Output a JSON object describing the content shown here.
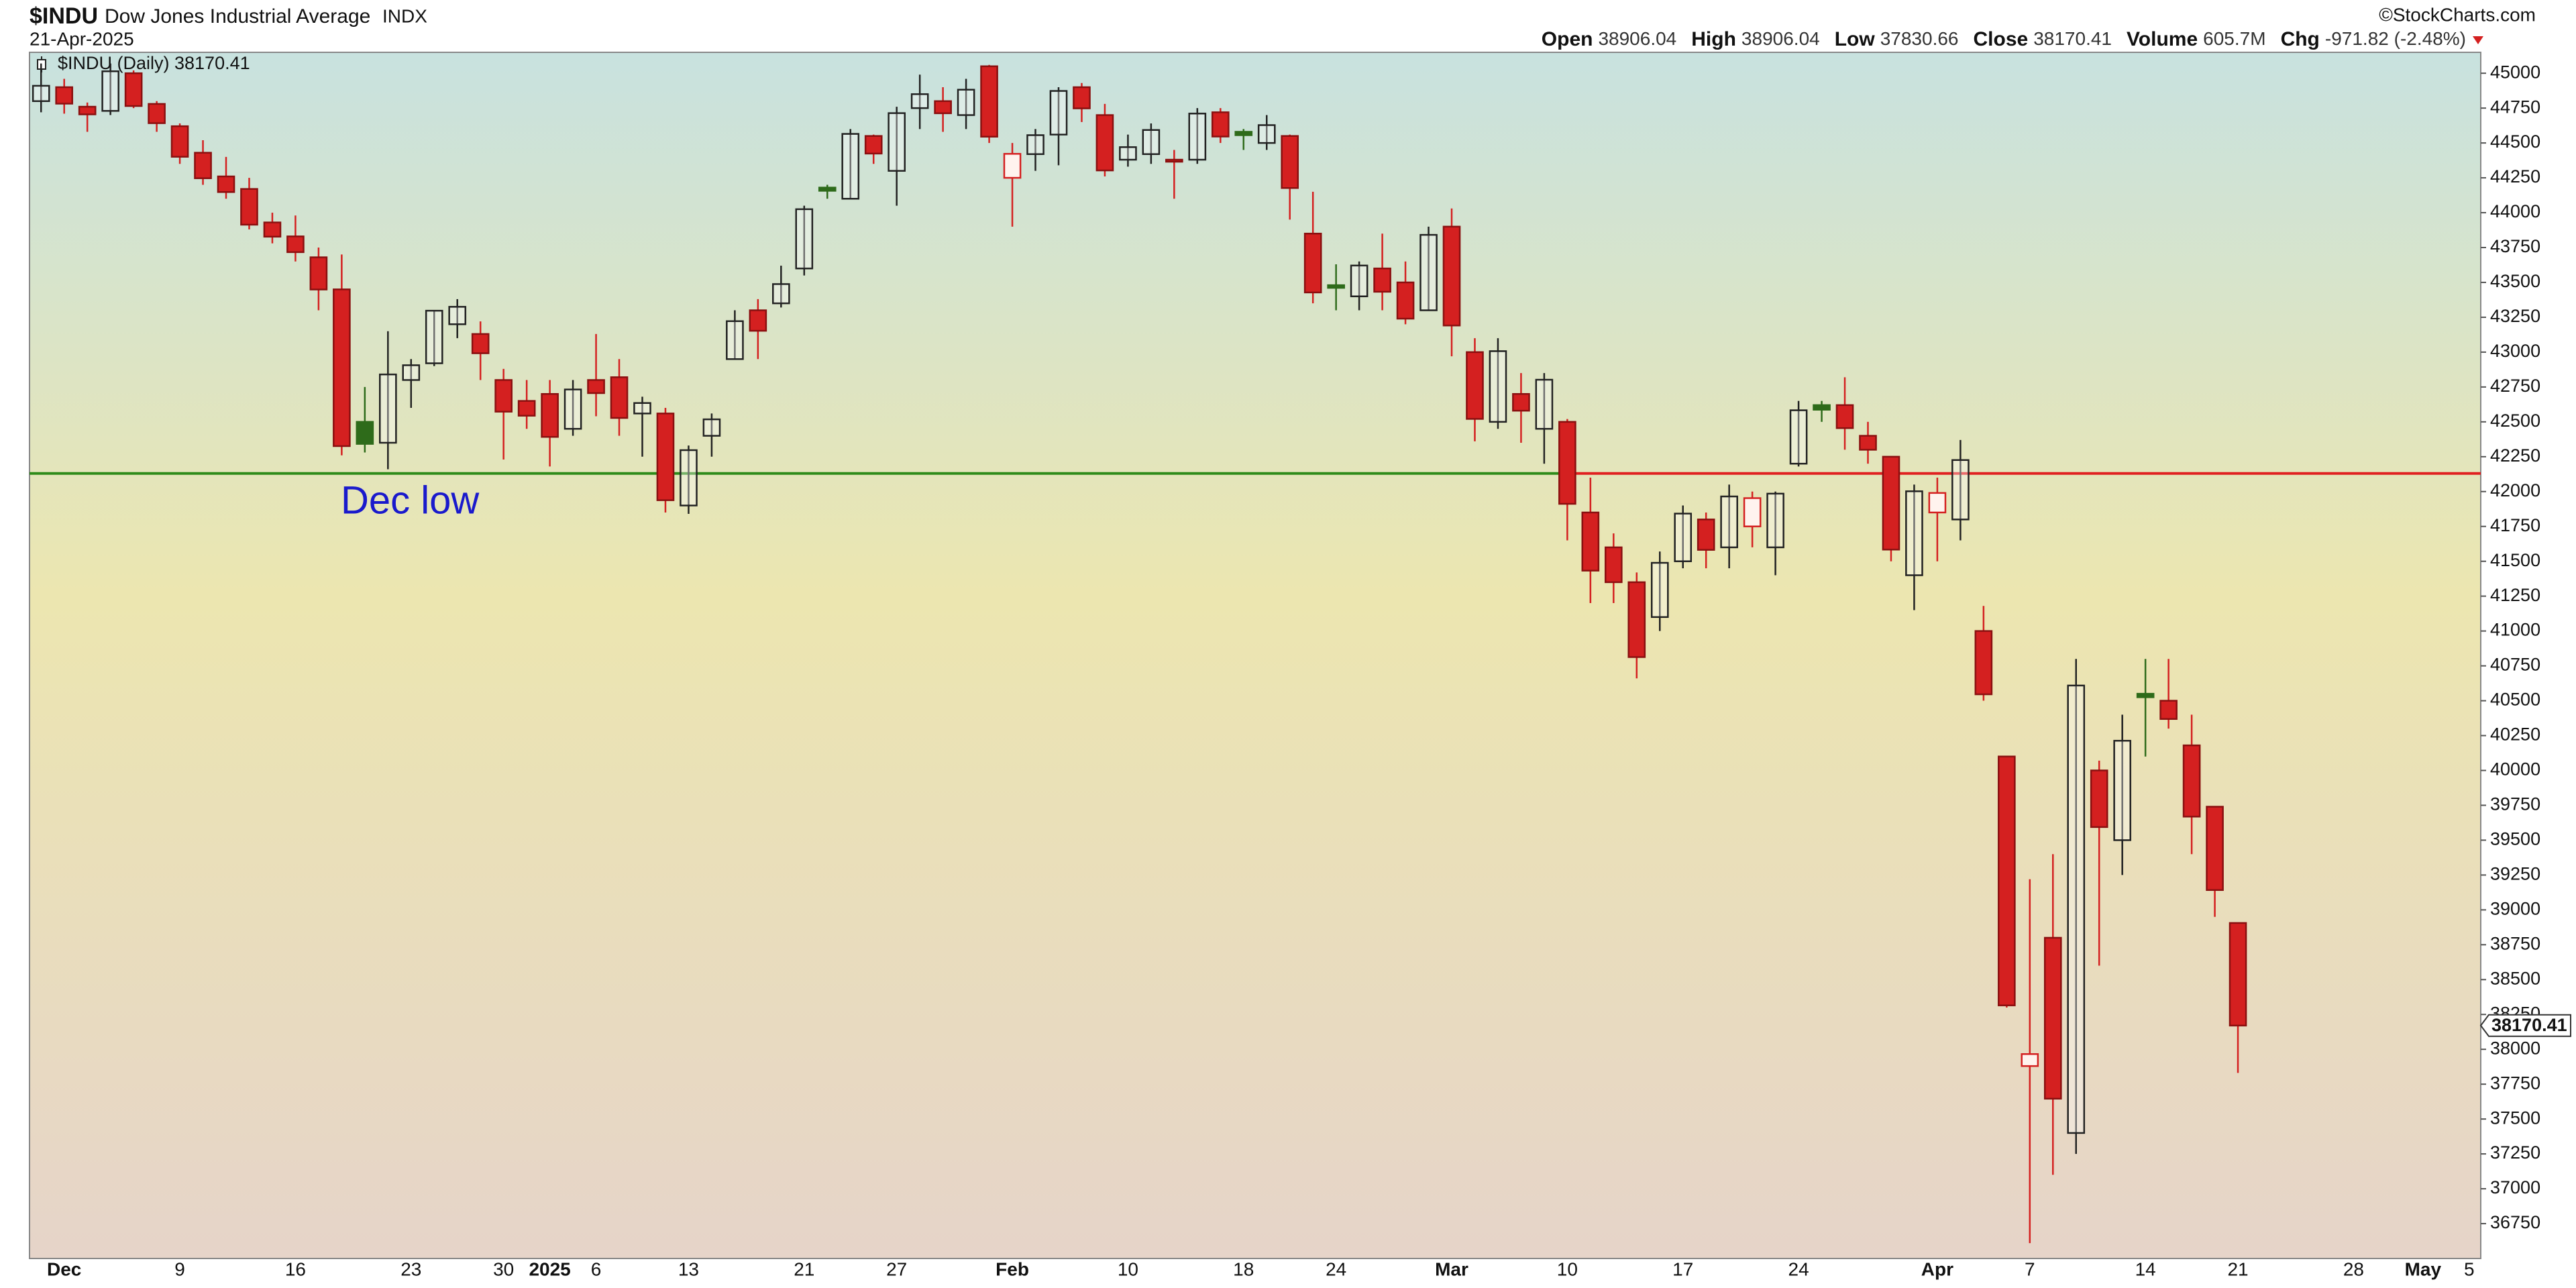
{
  "chart_data": {
    "type": "candlestick",
    "title": "$INDU",
    "subtitle": "Dow Jones Industrial Average",
    "exchange": "INDX",
    "date": "21-Apr-2025",
    "source": "©StockCharts.com",
    "legend": "$INDU (Daily) 38170.41",
    "quote": [
      {
        "label": "Open",
        "value": 38906.04
      },
      {
        "label": "High",
        "value": 38906.04
      },
      {
        "label": "Low",
        "value": 37830.66
      },
      {
        "label": "Close",
        "value": 38170.41
      },
      {
        "label": "Volume",
        "value": "605.7M"
      },
      {
        "label": "Chg",
        "value": "-971.82 (-2.48%)"
      }
    ],
    "annotation": "Dec low",
    "reference_line": {
      "value": 42130,
      "color": "#2e8b1a",
      "broken_color": "#e02020"
    },
    "up_color": "#222222",
    "down_color": "#d42020",
    "up_filled_color": "#2e6b1a",
    "categories": [
      null,
      "Dec",
      null,
      null,
      null,
      null,
      "9",
      null,
      null,
      null,
      null,
      "16",
      null,
      null,
      null,
      null,
      "23",
      null,
      null,
      null,
      "30",
      null,
      "2025",
      null,
      "6",
      null,
      null,
      null,
      "13",
      null,
      null,
      null,
      null,
      "21",
      null,
      null,
      null,
      "27",
      null,
      null,
      null,
      null,
      "Feb",
      null,
      null,
      null,
      null,
      "10",
      null,
      null,
      null,
      null,
      "18",
      null,
      null,
      null,
      "24",
      null,
      null,
      null,
      null,
      "Mar",
      null,
      null,
      null,
      null,
      "10",
      null,
      null,
      null,
      null,
      "17",
      null,
      null,
      null,
      null,
      "24",
      null,
      null,
      null,
      null,
      null,
      "Apr",
      null,
      null,
      null,
      "7",
      null,
      null,
      null,
      null,
      "14",
      null,
      null,
      null,
      "21",
      null,
      null,
      null,
      null,
      "28",
      null,
      null,
      "May",
      null,
      "5"
    ],
    "open": [
      44800,
      44900,
      44760,
      44730,
      45000,
      44780,
      44620,
      44430,
      44260,
      44170,
      43930,
      43830,
      43680,
      43450,
      42500,
      42350,
      42800,
      42920,
      43200,
      43130,
      42800,
      42650,
      42700,
      42450,
      42800,
      42820,
      42560,
      42560,
      41900,
      42400,
      42950,
      43300,
      43350,
      43600,
      44180,
      44100,
      44550,
      44300,
      44750,
      44800,
      44700,
      45050,
      44250,
      44420,
      44560,
      44900,
      44700,
      44380,
      44420,
      44380,
      44380,
      44720,
      44580,
      44500,
      44550,
      43850,
      43480,
      43400,
      43600,
      43500,
      43300,
      43900,
      43000,
      42500,
      42700,
      42450,
      42500,
      41850,
      41600,
      41350,
      41100,
      41500,
      41800,
      41600,
      41750,
      41600,
      42200,
      42620,
      42620,
      42400,
      42250,
      41400,
      41850,
      41800,
      41000,
      40100,
      37880,
      38800,
      37400,
      40000,
      39500,
      40550,
      40500,
      40180,
      39740,
      38906.04,
      null,
      null,
      null,
      null,
      null,
      null,
      null,
      null,
      null,
      null
    ],
    "high": [
      45070,
      44960,
      44790,
      45070,
      45020,
      44800,
      44640,
      44520,
      44400,
      44250,
      44000,
      43980,
      43750,
      43700,
      42750,
      43150,
      42950,
      43300,
      43380,
      43220,
      42880,
      42800,
      42800,
      42800,
      43130,
      42950,
      42680,
      42600,
      42330,
      42560,
      43300,
      43380,
      43620,
      44050,
      44200,
      44600,
      44560,
      44760,
      44990,
      44900,
      44960,
      45060,
      44500,
      44600,
      44900,
      44930,
      44780,
      44560,
      44640,
      44450,
      44750,
      44750,
      44600,
      44700,
      44560,
      44150,
      43630,
      43650,
      43850,
      43650,
      43900,
      44030,
      43100,
      43100,
      42850,
      42850,
      42520,
      42100,
      41700,
      41420,
      41570,
      41900,
      41850,
      42050,
      42000,
      42000,
      42650,
      42650,
      42820,
      42500,
      42250,
      42050,
      42100,
      42370,
      41180,
      40100,
      39220,
      39400,
      40800,
      40070,
      40400,
      40800,
      40800,
      40400,
      39740,
      38906.04,
      null,
      null,
      null,
      null,
      null,
      null,
      null,
      null,
      null,
      null
    ],
    "low": [
      44720,
      44710,
      44580,
      44700,
      44750,
      44580,
      44350,
      44200,
      44100,
      43880,
      43780,
      43650,
      43300,
      42260,
      42280,
      42160,
      42600,
      42900,
      43100,
      42800,
      42230,
      42450,
      42180,
      42400,
      42540,
      42400,
      42250,
      41850,
      41840,
      42250,
      42950,
      42950,
      43320,
      43550,
      44100,
      44100,
      44350,
      44050,
      44600,
      44580,
      44600,
      44500,
      43900,
      44300,
      44340,
      44650,
      44260,
      44330,
      44350,
      44100,
      44350,
      44500,
      44450,
      44450,
      43950,
      43350,
      43300,
      43300,
      43300,
      43200,
      43300,
      42970,
      42360,
      42450,
      42350,
      42200,
      41650,
      41200,
      41200,
      40660,
      41000,
      41450,
      41450,
      41450,
      41600,
      41400,
      42180,
      42500,
      42300,
      42200,
      41500,
      41150,
      41500,
      41650,
      40500,
      38300,
      36610,
      37100,
      37250,
      38600,
      39250,
      40100,
      40300,
      39400,
      38950,
      37830.66,
      null,
      null,
      null,
      null,
      null,
      null,
      null,
      null,
      null,
      null
    ],
    "close": [
      44910,
      44782,
      44705,
      45014,
      44765,
      44642,
      44401,
      44247,
      44148,
      43914,
      43828,
      43717,
      43449,
      42326,
      42342,
      42840,
      42906,
      43297,
      43325,
      42992,
      42573,
      42544,
      42392,
      42732,
      42706,
      42528,
      42635,
      41938,
      42297,
      42518,
      43222,
      43153,
      43488,
      44025,
      44157,
      44565,
      44424,
      44714,
      44850,
      44713,
      44882,
      44545,
      44422,
      44556,
      44873,
      44748,
      44303,
      44470,
      44593,
      44368,
      44711,
      44546,
      44556,
      44628,
      44177,
      43428,
      43461,
      43621,
      43433,
      43240,
      43841,
      43191,
      42521,
      43007,
      42580,
      42802,
      41912,
      41433,
      41350,
      40813,
      41489,
      41842,
      41582,
      41965,
      41953,
      41985,
      42583,
      42587,
      42455,
      42300,
      41584,
      42002,
      41990,
      42226,
      40546,
      38315,
      37966,
      37646,
      40609,
      39594,
      40213,
      40525,
      40369,
      39669,
      39142.23,
      38170.41,
      null,
      null,
      null,
      null,
      null,
      null,
      null,
      null,
      null,
      null
    ],
    "ylim": [
      36500,
      45150
    ],
    "yticks": [
      36750,
      37000,
      37250,
      37500,
      37750,
      38000,
      38250,
      38500,
      38750,
      39000,
      39250,
      39500,
      39750,
      40000,
      40250,
      40500,
      40750,
      41000,
      41250,
      41500,
      41750,
      42000,
      42250,
      42500,
      42750,
      43000,
      43250,
      43500,
      43750,
      44000,
      44250,
      44500,
      44750,
      45000
    ]
  }
}
